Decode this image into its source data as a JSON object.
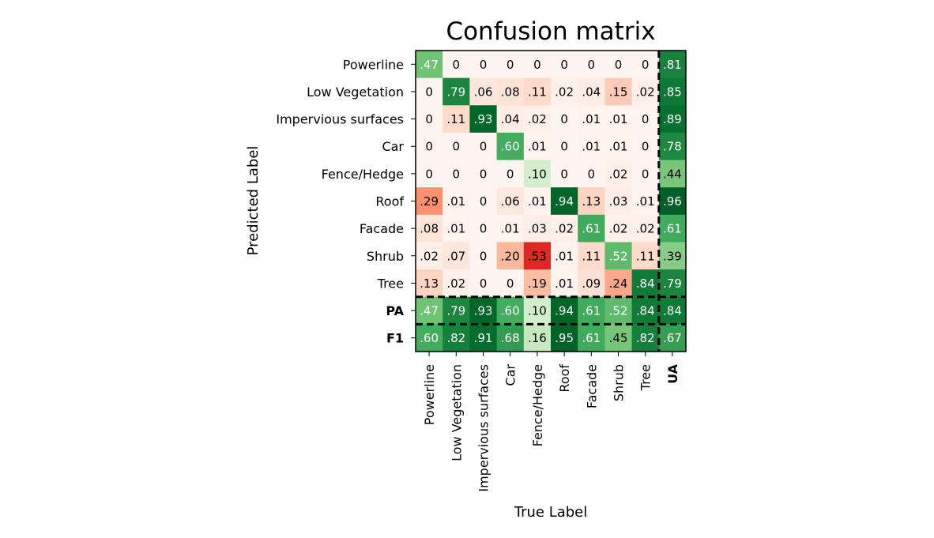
{
  "chart_data": {
    "type": "heatmap",
    "title": "Confusion matrix",
    "xlabel": "True Label",
    "ylabel": "Predicted Label",
    "row_labels": [
      "Powerline",
      "Low Vegetation",
      "Impervious surfaces",
      "Car",
      "Fence/Hedge",
      "Roof",
      "Facade",
      "Shrub",
      "Tree",
      "PA",
      "F1"
    ],
    "col_labels": [
      "Powerline",
      "Low Vegetation",
      "Impervious surfaces",
      "Car",
      "Fence/Hedge",
      "Roof",
      "Facade",
      "Shrub",
      "Tree",
      "UA"
    ],
    "bold_labels": [
      "PA",
      "F1",
      "UA"
    ],
    "cells": [
      [
        ".47",
        "0",
        "0",
        "0",
        "0",
        "0",
        "0",
        "0",
        "0",
        ".81"
      ],
      [
        "0",
        ".79",
        ".06",
        ".08",
        ".11",
        ".02",
        ".04",
        ".15",
        ".02",
        ".85"
      ],
      [
        "0",
        ".11",
        ".93",
        ".04",
        ".02",
        "0",
        ".01",
        ".01",
        "0",
        ".89"
      ],
      [
        "0",
        "0",
        "0",
        ".60",
        ".01",
        "0",
        ".01",
        ".01",
        "0",
        ".78"
      ],
      [
        "0",
        "0",
        "0",
        "0",
        ".10",
        "0",
        "0",
        ".02",
        "0",
        ".44"
      ],
      [
        ".29",
        ".01",
        "0",
        ".06",
        ".01",
        ".94",
        ".13",
        ".03",
        ".01",
        ".96"
      ],
      [
        ".08",
        ".01",
        "0",
        ".01",
        ".03",
        ".02",
        ".61",
        ".02",
        ".02",
        ".61"
      ],
      [
        ".02",
        ".07",
        "0",
        ".20",
        ".53",
        ".01",
        ".11",
        ".52",
        ".11",
        ".39"
      ],
      [
        ".13",
        ".02",
        "0",
        "0",
        ".19",
        ".01",
        ".09",
        ".24",
        ".84",
        ".79"
      ],
      [
        ".47",
        ".79",
        ".93",
        ".60",
        ".10",
        ".94",
        ".61",
        ".52",
        ".84",
        ".84"
      ],
      [
        ".60",
        ".82",
        ".91",
        ".68",
        ".16",
        ".95",
        ".61",
        ".45",
        ".82",
        ".67"
      ]
    ],
    "colormaps": {
      "diagonal_and_metrics": "Greens",
      "off_diagonal_errors": "Reds"
    },
    "separators": "dashed black lines before PA row, before F1 row, and before UA column"
  }
}
